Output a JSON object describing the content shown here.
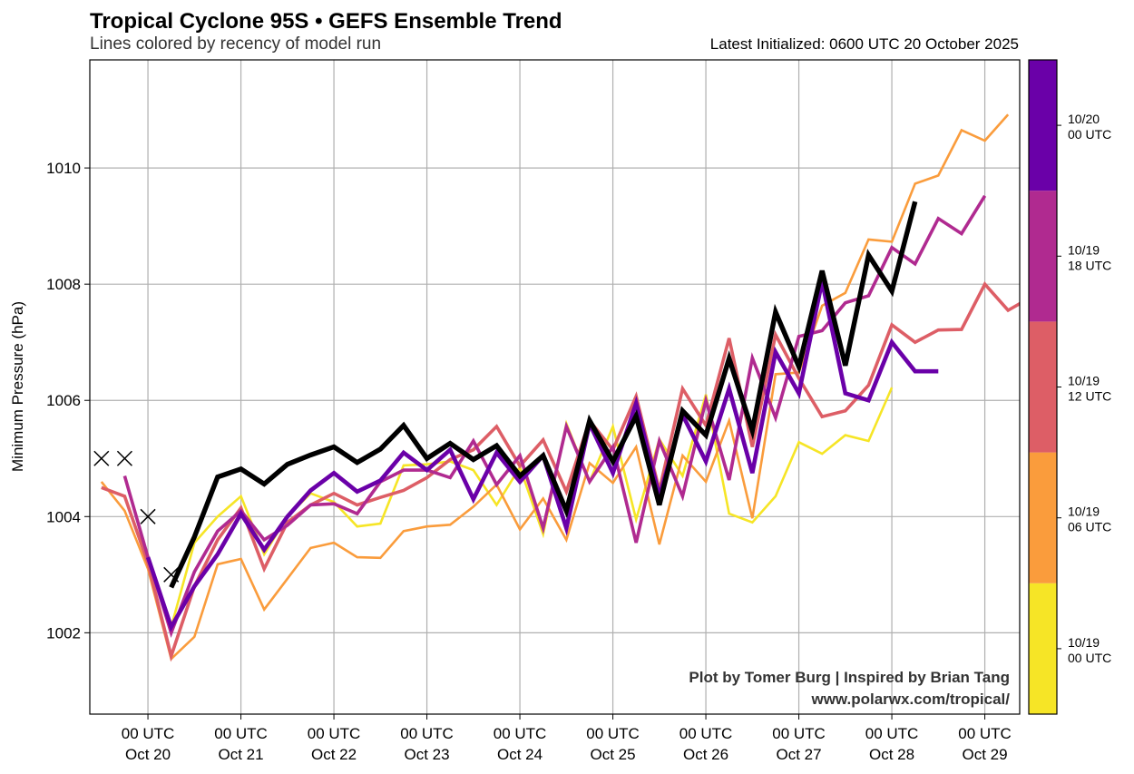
{
  "chart_data": {
    "type": "line",
    "title": "Tropical Cyclone 95S • GEFS Ensemble Trend",
    "subtitle": "Lines colored by recency of model run",
    "init_label": "Latest Initialized: 0600 UTC 20 October 2025",
    "xlabel": "",
    "ylabel": "Minimum Pressure (hPa)",
    "x_units": "hours since 00 UTC Oct 20",
    "xlim": [
      -15,
      225
    ],
    "ylim": [
      1000.6,
      1011.86
    ],
    "grid": true,
    "yticks": [
      1002,
      1004,
      1006,
      1008,
      1010
    ],
    "xticks": [
      {
        "hours": 0,
        "line1": "00 UTC",
        "line2": "Oct 20"
      },
      {
        "hours": 24,
        "line1": "00 UTC",
        "line2": "Oct 21"
      },
      {
        "hours": 48,
        "line1": "00 UTC",
        "line2": "Oct 22"
      },
      {
        "hours": 72,
        "line1": "00 UTC",
        "line2": "Oct 23"
      },
      {
        "hours": 96,
        "line1": "00 UTC",
        "line2": "Oct 24"
      },
      {
        "hours": 120,
        "line1": "00 UTC",
        "line2": "Oct 25"
      },
      {
        "hours": 144,
        "line1": "00 UTC",
        "line2": "Oct 26"
      },
      {
        "hours": 168,
        "line1": "00 UTC",
        "line2": "Oct 27"
      },
      {
        "hours": 192,
        "line1": "00 UTC",
        "line2": "Oct 28"
      },
      {
        "hours": 216,
        "line1": "00 UTC",
        "line2": "Oct 29"
      }
    ],
    "observed": {
      "name": "Observed",
      "marker": "x",
      "color": "#000000",
      "x": [
        -12,
        -6,
        0,
        6
      ],
      "y": [
        1005.0,
        1005.0,
        1004.0,
        1003.0
      ]
    },
    "series": [
      {
        "name": "10/19 00 UTC",
        "color": "#f6e526",
        "width": "thin",
        "x_start": 6,
        "values": [
          1002.1,
          1003.55,
          1004.0,
          1004.35,
          1003.35,
          1004.0,
          1004.4,
          1004.25,
          1003.83,
          1003.88,
          1004.88,
          1004.9,
          1004.95,
          1004.8,
          1004.2,
          1004.85,
          1003.7,
          1005.6,
          1004.6,
          1005.55,
          1003.95,
          1005.33,
          1004.7,
          1006.1,
          1004.05,
          1003.9,
          1004.35,
          1005.28,
          1005.08,
          1005.4,
          1005.3,
          1006.22
        ]
      },
      {
        "name": "10/19 06 UTC",
        "color": "#fa9c3c",
        "width": "thin",
        "x_start": -12,
        "values": [
          1004.6,
          1004.1,
          1003.1,
          1001.55,
          1001.93,
          1003.18,
          1003.27,
          1002.4,
          1002.93,
          1003.46,
          1003.55,
          1003.3,
          1003.29,
          1003.75,
          1003.83,
          1003.86,
          1004.17,
          1004.55,
          1003.78,
          1004.31,
          1003.6,
          1004.92,
          1004.58,
          1005.2,
          1003.52,
          1005.05,
          1004.6,
          1005.65,
          1003.97,
          1006.45,
          1006.48,
          1007.63,
          1007.85,
          1008.77,
          1008.73,
          1009.73,
          1009.87,
          1010.65,
          1010.47,
          1010.92
        ]
      },
      {
        "name": "10/19 12 UTC",
        "color": "#dd5e66",
        "width": "medium",
        "x_start": -12,
        "values": [
          1004.5,
          1004.35,
          1003.2,
          1001.6,
          1002.8,
          1003.6,
          1004.15,
          1003.1,
          1003.9,
          1004.2,
          1004.4,
          1004.2,
          1004.33,
          1004.45,
          1004.67,
          1004.98,
          1005.15,
          1005.55,
          1004.87,
          1005.32,
          1004.43,
          1005.65,
          1005.15,
          1006.07,
          1004.45,
          1006.2,
          1005.57,
          1007.07,
          1005.2,
          1007.13,
          1006.38,
          1005.72,
          1005.82,
          1006.26,
          1007.3,
          1007.0,
          1007.21,
          1007.22,
          1008.0,
          1007.55,
          1007.78
        ]
      },
      {
        "name": "10/19 18 UTC",
        "color": "#b02a90",
        "width": "medium",
        "x_start": -6,
        "values": [
          1004.7,
          1003.3,
          1002.0,
          1003.05,
          1003.75,
          1004.1,
          1003.6,
          1003.85,
          1004.2,
          1004.22,
          1004.05,
          1004.6,
          1004.8,
          1004.8,
          1004.67,
          1005.3,
          1004.55,
          1005.05,
          1003.8,
          1005.55,
          1004.6,
          1005.2,
          1003.55,
          1005.3,
          1004.35,
          1006.0,
          1004.63,
          1006.73,
          1005.7,
          1007.1,
          1007.2,
          1007.68,
          1007.8,
          1008.63,
          1008.35,
          1009.13,
          1008.87,
          1009.52
        ]
      },
      {
        "name": "10/20 00 UTC",
        "color": "#6a00a8",
        "width": "thick",
        "x_start": 0,
        "values": [
          1003.3,
          1002.1,
          1002.8,
          1003.35,
          1004.05,
          1003.43,
          1004.0,
          1004.45,
          1004.75,
          1004.43,
          1004.62,
          1005.1,
          1004.8,
          1005.15,
          1004.3,
          1005.1,
          1004.6,
          1005.05,
          1003.8,
          1005.6,
          1004.75,
          1005.95,
          1004.35,
          1005.75,
          1004.95,
          1006.2,
          1004.75,
          1006.83,
          1006.12,
          1008.05,
          1006.12,
          1006.0,
          1007.0,
          1006.5,
          1006.5
        ]
      },
      {
        "name": "10/20 06 UTC",
        "color": "#000000",
        "width": "thickest",
        "x_start": 6,
        "values": [
          1002.78,
          1003.65,
          1004.68,
          1004.82,
          1004.56,
          1004.9,
          1005.06,
          1005.2,
          1004.93,
          1005.16,
          1005.57,
          1005.0,
          1005.26,
          1004.98,
          1005.22,
          1004.7,
          1005.05,
          1004.1,
          1005.65,
          1004.95,
          1005.73,
          1004.2,
          1005.82,
          1005.4,
          1006.72,
          1005.48,
          1007.52,
          1006.58,
          1008.23,
          1006.6,
          1008.5,
          1007.88,
          1009.42
        ]
      }
    ],
    "colorbar": {
      "colors": [
        "#f6e526",
        "#fa9c3c",
        "#dd5e66",
        "#b02a90",
        "#6a00a8"
      ],
      "labels": [
        {
          "line1": "10/19",
          "line2": "00 UTC"
        },
        {
          "line1": "10/19",
          "line2": "06 UTC"
        },
        {
          "line1": "10/19",
          "line2": "12 UTC"
        },
        {
          "line1": "10/19",
          "line2": "18 UTC"
        },
        {
          "line1": "10/20",
          "line2": "00 UTC"
        }
      ]
    },
    "credit_line1": "Plot by Tomer Burg | Inspired by Brian Tang",
    "credit_line2": "www.polarwx.com/tropical/"
  }
}
